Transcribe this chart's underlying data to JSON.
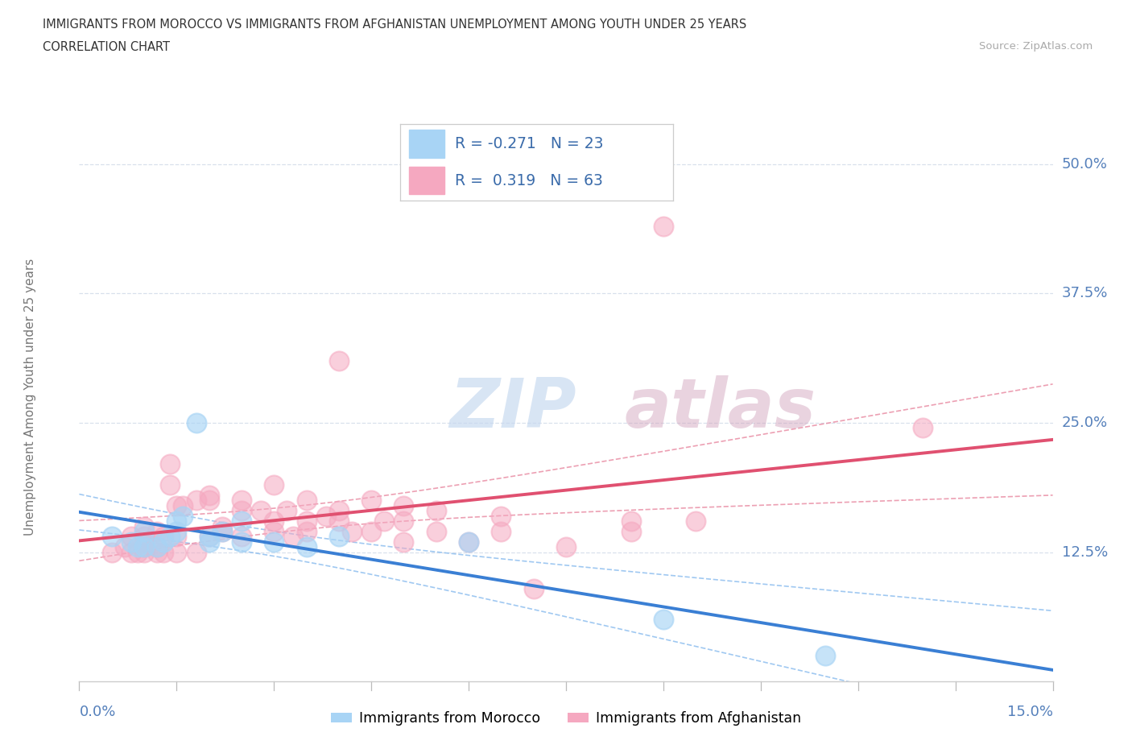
{
  "title_line1": "IMMIGRANTS FROM MOROCCO VS IMMIGRANTS FROM AFGHANISTAN UNEMPLOYMENT AMONG YOUTH UNDER 25 YEARS",
  "title_line2": "CORRELATION CHART",
  "source_text": "Source: ZipAtlas.com",
  "ylabel": "Unemployment Among Youth under 25 years",
  "xlim": [
    0.0,
    0.15
  ],
  "ylim": [
    0.0,
    0.55
  ],
  "yticks": [
    0.125,
    0.25,
    0.375,
    0.5
  ],
  "ytick_labels": [
    "12.5%",
    "25.0%",
    "37.5%",
    "50.0%"
  ],
  "xtick_left_label": "0.0%",
  "xtick_right_label": "15.0%",
  "morocco_scatter_color": "#a8d4f5",
  "afghanistan_scatter_color": "#f5a8c0",
  "morocco_line_color": "#3a7fd4",
  "afghanistan_line_color": "#e05070",
  "morocco_ci_dash_color": "#88bbee",
  "afghanistan_ci_dash_color": "#e888a0",
  "stat_box_text_color": "#3a6baa",
  "ylabel_color": "#777777",
  "ytick_color": "#5580bb",
  "xtick_color": "#5580bb",
  "grid_color": "#d8e0ec",
  "title_color": "#333333",
  "source_color": "#aaaaaa",
  "watermark_color": "#dce8f5",
  "R_morocco": -0.271,
  "N_morocco": 23,
  "R_afghanistan": 0.319,
  "N_afghanistan": 63,
  "watermark_zip": "ZIP",
  "watermark_atlas": "atlas",
  "morocco_scatter_x": [
    0.005,
    0.008,
    0.009,
    0.01,
    0.01,
    0.012,
    0.013,
    0.014,
    0.015,
    0.015,
    0.016,
    0.018,
    0.02,
    0.02,
    0.022,
    0.025,
    0.025,
    0.03,
    0.035,
    0.04,
    0.06,
    0.09,
    0.115
  ],
  "morocco_scatter_y": [
    0.14,
    0.135,
    0.13,
    0.145,
    0.13,
    0.13,
    0.135,
    0.14,
    0.145,
    0.155,
    0.16,
    0.25,
    0.135,
    0.14,
    0.145,
    0.155,
    0.135,
    0.135,
    0.13,
    0.14,
    0.135,
    0.06,
    0.025
  ],
  "afghanistan_scatter_x": [
    0.005,
    0.007,
    0.008,
    0.008,
    0.009,
    0.01,
    0.01,
    0.01,
    0.01,
    0.01,
    0.012,
    0.012,
    0.012,
    0.013,
    0.013,
    0.014,
    0.014,
    0.015,
    0.015,
    0.015,
    0.016,
    0.018,
    0.018,
    0.02,
    0.02,
    0.02,
    0.022,
    0.022,
    0.025,
    0.025,
    0.025,
    0.028,
    0.03,
    0.03,
    0.03,
    0.032,
    0.033,
    0.035,
    0.035,
    0.035,
    0.038,
    0.04,
    0.04,
    0.04,
    0.042,
    0.045,
    0.045,
    0.047,
    0.05,
    0.05,
    0.05,
    0.055,
    0.055,
    0.06,
    0.065,
    0.065,
    0.07,
    0.075,
    0.085,
    0.085,
    0.09,
    0.095,
    0.13
  ],
  "afghanistan_scatter_y": [
    0.125,
    0.13,
    0.125,
    0.14,
    0.125,
    0.125,
    0.13,
    0.135,
    0.14,
    0.15,
    0.125,
    0.13,
    0.145,
    0.125,
    0.14,
    0.19,
    0.21,
    0.125,
    0.14,
    0.17,
    0.17,
    0.125,
    0.175,
    0.14,
    0.175,
    0.18,
    0.145,
    0.15,
    0.14,
    0.165,
    0.175,
    0.165,
    0.145,
    0.155,
    0.19,
    0.165,
    0.14,
    0.145,
    0.155,
    0.175,
    0.16,
    0.155,
    0.165,
    0.31,
    0.145,
    0.145,
    0.175,
    0.155,
    0.135,
    0.155,
    0.17,
    0.145,
    0.165,
    0.135,
    0.145,
    0.16,
    0.09,
    0.13,
    0.145,
    0.155,
    0.44,
    0.155,
    0.245
  ]
}
